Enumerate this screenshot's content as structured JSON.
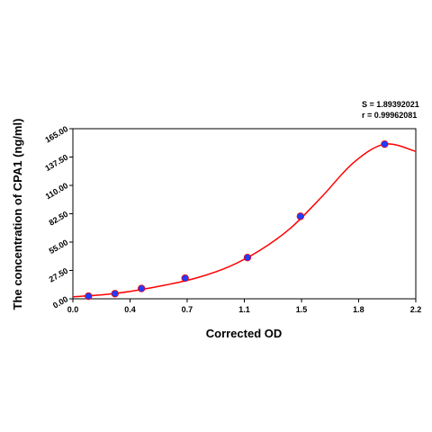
{
  "chart_data": {
    "type": "scatter",
    "title": "",
    "xlabel": "Corrected OD",
    "ylabel": "The concentration of CPA1 (ng/ml)",
    "xlim": [
      0.0,
      2.2
    ],
    "ylim": [
      0.0,
      165.0
    ],
    "x_ticks": [
      "0.0",
      "0.4",
      "0.7",
      "1.1",
      "1.5",
      "1.8",
      "2.2"
    ],
    "x_tick_values": [
      0.0,
      0.367,
      0.733,
      1.1,
      1.467,
      1.833,
      2.2
    ],
    "y_ticks": [
      "0.00",
      "27.50",
      "55.00",
      "82.50",
      "110.00",
      "137.50",
      "165.00"
    ],
    "y_tick_values": [
      0,
      27.5,
      55,
      82.5,
      110,
      137.5,
      165
    ],
    "grid": false,
    "legend": "none",
    "stats": {
      "s": "S = 1.89392021",
      "r": "r = 0.99962081"
    },
    "series": [
      {
        "kind": "points",
        "x": [
          0.1,
          0.27,
          0.44,
          0.72,
          1.12,
          1.46,
          2.0
        ],
        "y": [
          2.5,
          5.0,
          10.0,
          20.0,
          40.0,
          80.0,
          150.0
        ]
      },
      {
        "kind": "fit-curve",
        "x": [
          0.0,
          0.2,
          0.4,
          0.6,
          0.8,
          1.0,
          1.2,
          1.4,
          1.6,
          1.8,
          2.0,
          2.2
        ],
        "y": [
          2.0,
          4.0,
          8.0,
          13.5,
          20.5,
          31.0,
          47.0,
          69.0,
          99.5,
          132.0,
          150.0,
          143.0
        ]
      }
    ],
    "colors": {
      "point_fill": "#1f3cff",
      "curve": "#ff0000",
      "axis": "#000000",
      "frame": "#000000"
    }
  }
}
